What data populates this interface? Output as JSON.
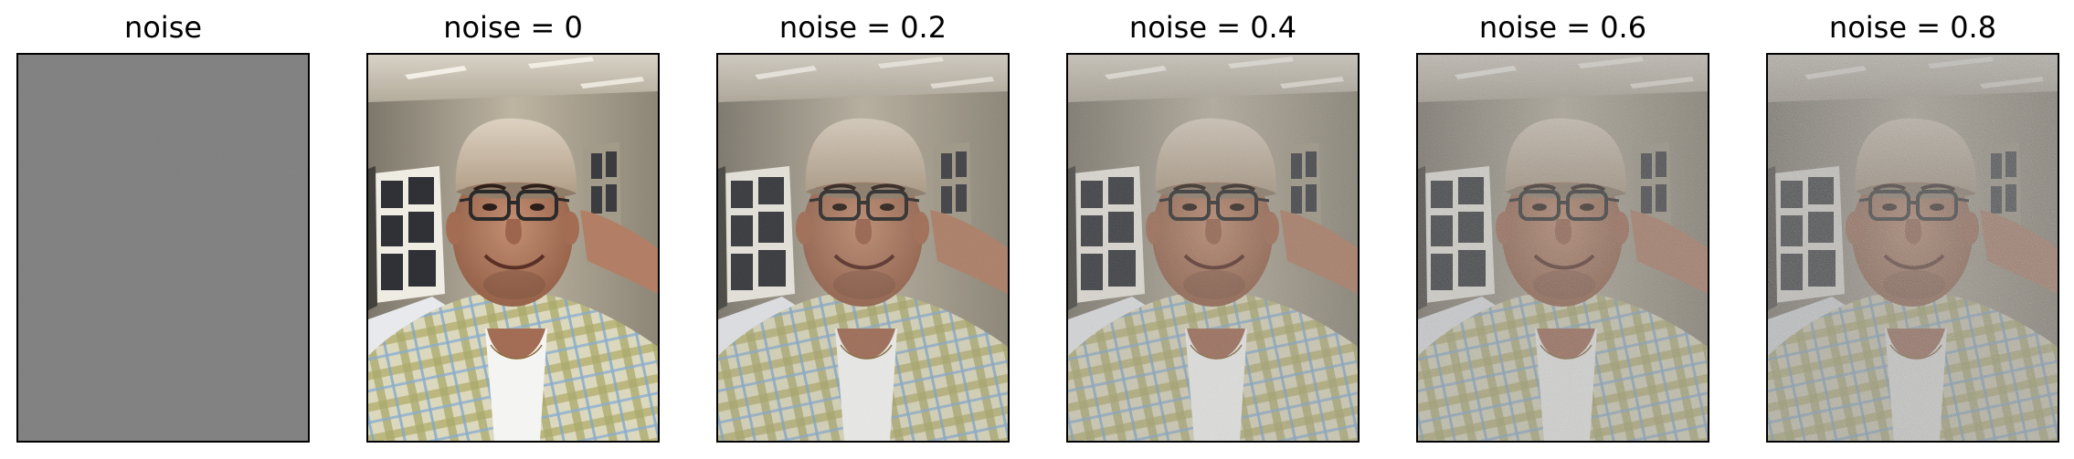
{
  "figure": {
    "panels": [
      {
        "title": "noise",
        "noise_level": null,
        "kind": "noise-only"
      },
      {
        "title": "noise = 0",
        "noise_level": 0,
        "kind": "photo"
      },
      {
        "title": "noise = 0.2",
        "noise_level": 0.2,
        "kind": "photo"
      },
      {
        "title": "noise = 0.4",
        "noise_level": 0.4,
        "kind": "photo"
      },
      {
        "title": "noise = 0.6",
        "noise_level": 0.6,
        "kind": "photo"
      },
      {
        "title": "noise = 0.8",
        "noise_level": 0.8,
        "kind": "photo"
      }
    ],
    "colors": {
      "noise_gray": "#808080",
      "frame": "#000000",
      "background": "#ffffff"
    }
  }
}
